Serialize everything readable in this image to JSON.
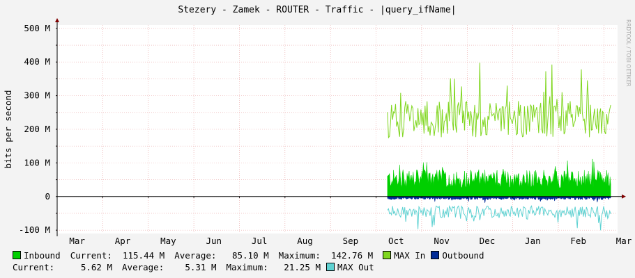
{
  "chart_data": {
    "type": "area",
    "title": "Stezery - Zamek - ROUTER - Traffic - |query_ifName|",
    "ylabel": "bits per second",
    "watermark": "RRDTOOL / TOBI OETIKER",
    "ylim": [
      -110,
      510
    ],
    "yticks": [
      {
        "v": 500,
        "label": "500 M"
      },
      {
        "v": 400,
        "label": "400 M"
      },
      {
        "v": 300,
        "label": "300 M"
      },
      {
        "v": 200,
        "label": "200 M"
      },
      {
        "v": 100,
        "label": "100 M"
      },
      {
        "v": 0,
        "label": "0"
      },
      {
        "v": -100,
        "label": "-100 M"
      }
    ],
    "xlim": [
      0,
      12.3
    ],
    "months": [
      {
        "v": 0.5,
        "label": "Mar"
      },
      {
        "v": 1.5,
        "label": "Apr"
      },
      {
        "v": 2.5,
        "label": "May"
      },
      {
        "v": 3.5,
        "label": "Jun"
      },
      {
        "v": 4.5,
        "label": "Jul"
      },
      {
        "v": 5.5,
        "label": "Aug"
      },
      {
        "v": 6.5,
        "label": "Sep"
      },
      {
        "v": 7.5,
        "label": "Oct"
      },
      {
        "v": 8.5,
        "label": "Nov"
      },
      {
        "v": 9.5,
        "label": "Dec"
      },
      {
        "v": 10.5,
        "label": "Jan"
      },
      {
        "v": 11.5,
        "label": "Feb"
      },
      {
        "v": 12.5,
        "label": "Mar"
      }
    ],
    "data_start": 7.25,
    "data_end": 12.15,
    "colors": {
      "inbound": "#00CF00",
      "max_in": "#7FD61E",
      "outbound": "#002A97",
      "max_out": "#5FD2D2",
      "grid": "#e9a4a4",
      "axis": "#000000"
    },
    "series": [
      {
        "name": "Inbound",
        "current": "115.44 M",
        "average": "85.10 M",
        "maximum": "142.76 M"
      },
      {
        "name": "MAX In"
      },
      {
        "name": "Outbound",
        "current": "5.62 M",
        "average": "5.31 M",
        "maximum": "21.25 M"
      },
      {
        "name": "MAX Out"
      }
    ]
  },
  "legend": {
    "inbound": "Inbound",
    "current_label": "Current:",
    "average_label": "Average:",
    "maximum_label": "Maximum:",
    "in_current": "115.44 M",
    "in_average": "85.10 M",
    "in_maximum": "142.76 M",
    "max_in": "MAX In",
    "outbound": "Outbound",
    "out_current": "5.62 M",
    "out_average": "5.31 M",
    "out_maximum": "21.25 M",
    "max_out": "MAX Out"
  }
}
